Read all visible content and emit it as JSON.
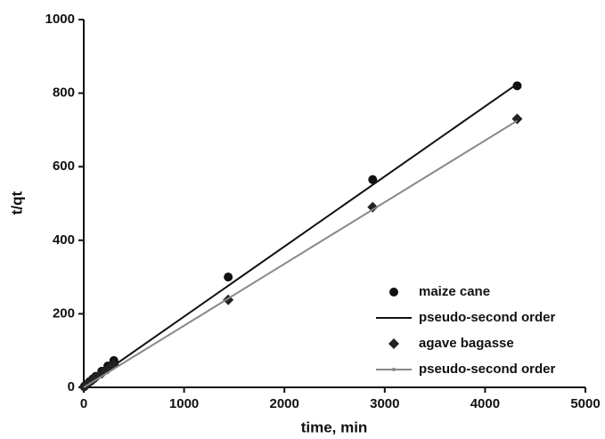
{
  "chart_data": {
    "type": "scatter",
    "x_label": "time, min",
    "y_label": "t/qt",
    "xlim": [
      0,
      5000
    ],
    "xticks": [
      0,
      1000,
      2000,
      3000,
      4000,
      5000
    ],
    "ylim": [
      0,
      1000
    ],
    "yticks": [
      0,
      200,
      400,
      600,
      800,
      1000
    ],
    "legend": "lower right",
    "series": [
      {
        "name": "maize cane",
        "color": "#111111",
        "mode": "markers",
        "marker": "circle",
        "x": [
          5,
          15,
          30,
          60,
          90,
          120,
          180,
          240,
          300,
          1440,
          2880,
          4320
        ],
        "values": [
          2,
          5,
          9,
          16,
          23,
          30,
          44,
          58,
          73,
          300,
          565,
          820
        ]
      },
      {
        "name": "pseudo-second order",
        "color": "#111111",
        "mode": "line",
        "marker": "none",
        "x": [
          0,
          4320
        ],
        "values": [
          2,
          825
        ]
      },
      {
        "name": "agave bagasse",
        "color": "#222222",
        "mode": "markers",
        "marker": "diamond",
        "x": [
          5,
          15,
          30,
          60,
          90,
          120,
          180,
          240,
          300,
          1440,
          2880,
          4320
        ],
        "values": [
          2,
          5,
          8,
          14,
          20,
          27,
          38,
          50,
          62,
          238,
          490,
          730
        ]
      },
      {
        "name": "pseudo-second order",
        "color": "#888888",
        "mode": "line",
        "marker": "dot",
        "x": [
          0,
          4320
        ],
        "values": [
          0,
          725
        ]
      }
    ]
  }
}
